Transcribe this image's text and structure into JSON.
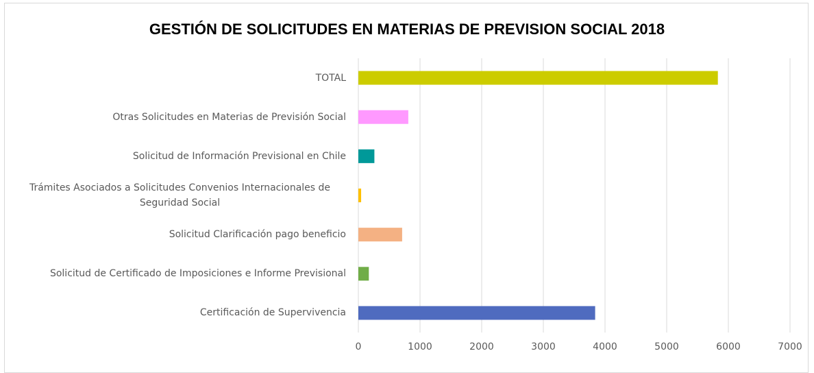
{
  "chart_data": {
    "type": "barh",
    "title": "GESTIÓN DE SOLICITUDES EN MATERIAS DE PREVISION SOCIAL 2018",
    "categories": [
      "TOTAL",
      "Otras Solicitudes en Materias de Previsión Social",
      "Solicitud de Información Previsional en Chile",
      "Trámites Asociados a Solicitudes Convenios Internacionales de Seguridad Social",
      "Solicitud Clarificación pago beneficio",
      "Solicitud de Certificado de Imposiciones e Informe Previsional",
      "Certificación de Supervivencia"
    ],
    "values": [
      5830,
      810,
      260,
      45,
      710,
      170,
      3840
    ],
    "colors": [
      "#cccc00",
      "#ff99ff",
      "#009999",
      "#ffc000",
      "#f4b183",
      "#70ad47",
      "#4f6bbf"
    ],
    "xlim": [
      0,
      7000
    ],
    "xticks": [
      0,
      1000,
      2000,
      3000,
      4000,
      5000,
      6000,
      7000
    ],
    "grid": true
  }
}
